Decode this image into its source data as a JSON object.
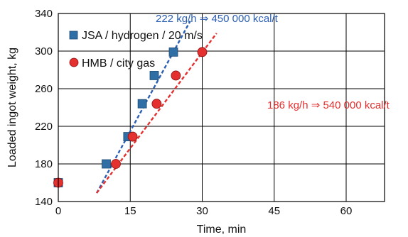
{
  "chart_data": {
    "type": "scatter",
    "xlabel": "Time, min",
    "ylabel": "Loaded ingot weight, kg",
    "xlim": [
      0,
      68
    ],
    "ylim": [
      140,
      340
    ],
    "x_ticks": [
      0,
      15,
      30,
      45,
      60
    ],
    "y_ticks": [
      140,
      180,
      220,
      260,
      300,
      340
    ],
    "grid": true,
    "legend_position": "upper-left",
    "series": [
      {
        "name": "JSA / hydrogen / 20 m/s",
        "marker": "square",
        "color": "#2f6fa6",
        "points": [
          [
            0,
            160
          ],
          [
            10,
            180
          ],
          [
            14.5,
            209
          ],
          [
            17.5,
            244
          ],
          [
            20,
            274
          ],
          [
            24,
            299
          ]
        ]
      },
      {
        "name": "HMB / city gas",
        "marker": "circle",
        "color": "#e53030",
        "points": [
          [
            0,
            160
          ],
          [
            12,
            180
          ],
          [
            15.5,
            209
          ],
          [
            20.5,
            244
          ],
          [
            24.5,
            274
          ],
          [
            30,
            299
          ]
        ]
      }
    ],
    "trendlines": [
      {
        "color": "#2b5fb4",
        "style": "dashed",
        "from": [
          8,
          149
        ],
        "to": [
          27.5,
          332
        ],
        "label": "222 kg/h ⇒ 450 000 kcal/t"
      },
      {
        "color": "#e53030",
        "style": "dashed",
        "from": [
          8,
          149
        ],
        "to": [
          33,
          319
        ],
        "label": "186 kg/h ⇒ 540 000 kcal/t"
      }
    ]
  }
}
